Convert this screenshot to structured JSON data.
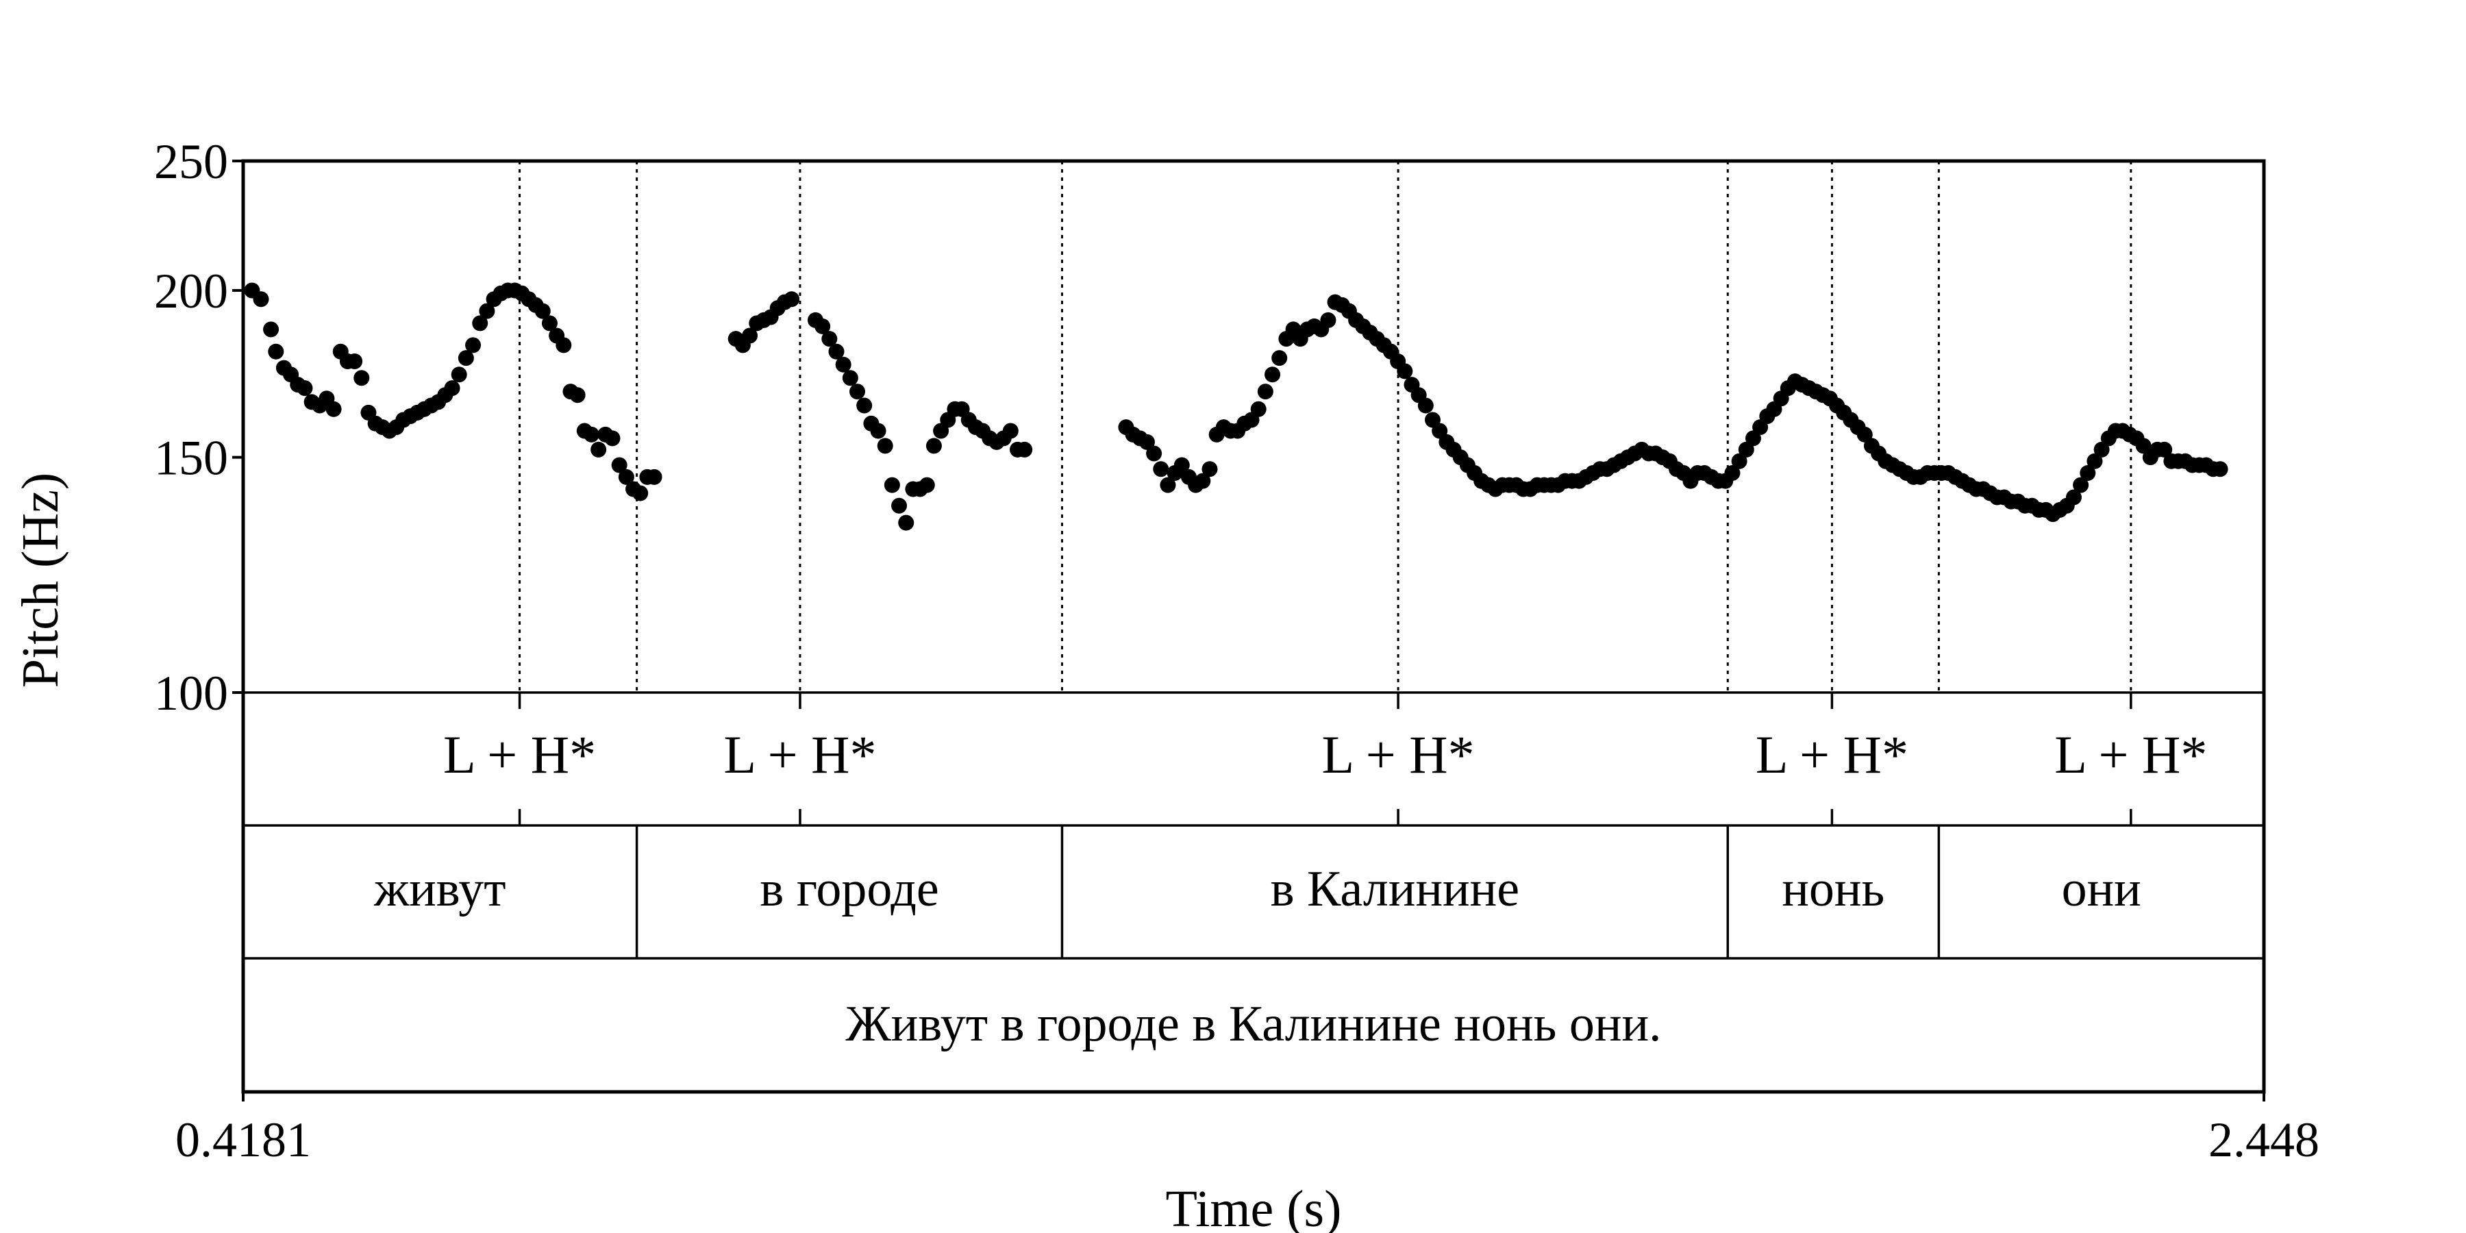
{
  "chart_data": {
    "type": "scatter",
    "xlabel": "Time (s)",
    "ylabel": "Pitch (Hz)",
    "xlim": [
      0.4181,
      2.448
    ],
    "ylim": [
      100,
      250
    ],
    "y_scale": "log",
    "x_tick_labels": [
      "0.4181",
      "2.448"
    ],
    "y_ticks": [
      {
        "value": 100,
        "label": "100"
      },
      {
        "value": 150,
        "label": "150"
      },
      {
        "value": 200,
        "label": "200"
      },
      {
        "value": 250,
        "label": "250"
      }
    ],
    "grid": false,
    "marker_color": "#000000",
    "series": [
      {
        "points": [
          [
            0.427,
            200
          ],
          [
            0.436,
            197
          ],
          [
            0.446,
            187
          ],
          [
            0.451,
            180
          ],
          [
            0.459,
            175
          ],
          [
            0.466,
            173
          ],
          [
            0.473,
            170
          ],
          [
            0.48,
            169
          ],
          [
            0.487,
            165
          ],
          [
            0.495,
            164
          ],
          [
            0.502,
            166
          ],
          [
            0.509,
            163
          ],
          [
            0.516,
            180
          ],
          [
            0.523,
            177
          ],
          [
            0.53,
            177
          ],
          [
            0.537,
            172
          ],
          [
            0.544,
            162
          ],
          [
            0.551,
            159
          ],
          [
            0.558,
            158
          ],
          [
            0.565,
            157
          ],
          [
            0.572,
            158
          ],
          [
            0.579,
            160
          ],
          [
            0.586,
            161
          ],
          [
            0.593,
            162
          ],
          [
            0.6,
            163
          ],
          [
            0.607,
            164
          ],
          [
            0.614,
            165
          ],
          [
            0.621,
            167
          ],
          [
            0.628,
            169
          ],
          [
            0.635,
            173
          ],
          [
            0.642,
            178
          ],
          [
            0.649,
            182
          ],
          [
            0.656,
            189
          ],
          [
            0.663,
            193
          ],
          [
            0.67,
            197
          ],
          [
            0.677,
            199
          ],
          [
            0.684,
            200
          ],
          [
            0.691,
            200
          ],
          [
            0.698,
            199
          ],
          [
            0.705,
            197
          ],
          [
            0.712,
            195
          ],
          [
            0.719,
            193
          ],
          [
            0.726,
            189
          ],
          [
            0.733,
            185
          ],
          [
            0.74,
            182
          ],
          [
            0.747,
            168
          ],
          [
            0.754,
            167
          ],
          [
            0.761,
            157
          ],
          [
            0.768,
            156
          ],
          [
            0.775,
            152
          ],
          [
            0.782,
            156
          ],
          [
            0.789,
            155
          ],
          [
            0.796,
            148
          ],
          [
            0.803,
            145
          ],
          [
            0.81,
            142
          ],
          [
            0.817,
            141
          ],
          [
            0.824,
            145
          ],
          [
            0.831,
            145
          ],
          [
            0.913,
            184
          ],
          [
            0.92,
            182
          ],
          [
            0.927,
            185
          ],
          [
            0.934,
            189
          ],
          [
            0.941,
            190
          ],
          [
            0.948,
            191
          ],
          [
            0.955,
            194
          ],
          [
            0.962,
            196
          ],
          [
            0.969,
            197
          ],
          [
            0.993,
            190
          ],
          [
            1.0,
            188
          ],
          [
            1.007,
            184
          ],
          [
            1.014,
            180
          ],
          [
            1.021,
            176
          ],
          [
            1.028,
            172
          ],
          [
            1.035,
            168
          ],
          [
            1.042,
            164
          ],
          [
            1.049,
            159
          ],
          [
            1.056,
            157
          ],
          [
            1.063,
            153
          ],
          [
            1.07,
            143
          ],
          [
            1.077,
            138
          ],
          [
            1.084,
            134
          ],
          [
            1.091,
            142
          ],
          [
            1.098,
            142
          ],
          [
            1.105,
            143
          ],
          [
            1.112,
            153
          ],
          [
            1.119,
            157
          ],
          [
            1.126,
            160
          ],
          [
            1.133,
            163
          ],
          [
            1.14,
            163
          ],
          [
            1.147,
            160
          ],
          [
            1.154,
            158
          ],
          [
            1.161,
            157
          ],
          [
            1.168,
            155
          ],
          [
            1.175,
            154
          ],
          [
            1.182,
            155
          ],
          [
            1.189,
            157
          ],
          [
            1.196,
            152
          ],
          [
            1.203,
            152
          ],
          [
            1.305,
            158
          ],
          [
            1.312,
            156
          ],
          [
            1.319,
            155
          ],
          [
            1.326,
            154
          ],
          [
            1.333,
            151
          ],
          [
            1.34,
            147
          ],
          [
            1.347,
            143
          ],
          [
            1.354,
            146
          ],
          [
            1.361,
            148
          ],
          [
            1.368,
            145
          ],
          [
            1.375,
            143
          ],
          [
            1.382,
            144
          ],
          [
            1.389,
            147
          ],
          [
            1.396,
            156
          ],
          [
            1.403,
            158
          ],
          [
            1.41,
            157
          ],
          [
            1.417,
            157
          ],
          [
            1.424,
            159
          ],
          [
            1.431,
            160
          ],
          [
            1.438,
            163
          ],
          [
            1.445,
            168
          ],
          [
            1.452,
            173
          ],
          [
            1.459,
            178
          ],
          [
            1.466,
            184
          ],
          [
            1.473,
            187
          ],
          [
            1.48,
            184
          ],
          [
            1.487,
            187
          ],
          [
            1.494,
            188
          ],
          [
            1.501,
            187
          ],
          [
            1.508,
            190
          ],
          [
            1.515,
            196
          ],
          [
            1.522,
            195
          ],
          [
            1.529,
            193
          ],
          [
            1.536,
            190
          ],
          [
            1.543,
            188
          ],
          [
            1.55,
            186
          ],
          [
            1.557,
            184
          ],
          [
            1.564,
            182
          ],
          [
            1.571,
            180
          ],
          [
            1.578,
            177
          ],
          [
            1.585,
            174
          ],
          [
            1.592,
            170
          ],
          [
            1.599,
            167
          ],
          [
            1.606,
            164
          ],
          [
            1.613,
            160
          ],
          [
            1.62,
            157
          ],
          [
            1.627,
            154
          ],
          [
            1.634,
            152
          ],
          [
            1.641,
            150
          ],
          [
            1.648,
            148
          ],
          [
            1.655,
            146
          ],
          [
            1.662,
            144
          ],
          [
            1.669,
            143
          ],
          [
            1.676,
            142
          ],
          [
            1.683,
            143
          ],
          [
            1.69,
            143
          ],
          [
            1.697,
            143
          ],
          [
            1.704,
            142
          ],
          [
            1.711,
            142
          ],
          [
            1.718,
            143
          ],
          [
            1.725,
            143
          ],
          [
            1.732,
            143
          ],
          [
            1.739,
            143
          ],
          [
            1.746,
            144
          ],
          [
            1.753,
            144
          ],
          [
            1.76,
            144
          ],
          [
            1.767,
            145
          ],
          [
            1.774,
            146
          ],
          [
            1.781,
            147
          ],
          [
            1.788,
            147
          ],
          [
            1.795,
            148
          ],
          [
            1.802,
            149
          ],
          [
            1.809,
            150
          ],
          [
            1.816,
            151
          ],
          [
            1.823,
            152
          ],
          [
            1.83,
            151
          ],
          [
            1.837,
            151
          ],
          [
            1.844,
            150
          ],
          [
            1.851,
            149
          ],
          [
            1.858,
            147
          ],
          [
            1.865,
            146
          ],
          [
            1.872,
            144
          ],
          [
            1.879,
            146
          ],
          [
            1.886,
            146
          ],
          [
            1.893,
            145
          ],
          [
            1.9,
            144
          ],
          [
            1.907,
            144
          ],
          [
            1.914,
            146
          ],
          [
            1.921,
            149
          ],
          [
            1.928,
            152
          ],
          [
            1.935,
            155
          ],
          [
            1.942,
            158
          ],
          [
            1.949,
            161
          ],
          [
            1.956,
            163
          ],
          [
            1.963,
            166
          ],
          [
            1.97,
            169
          ],
          [
            1.977,
            171
          ],
          [
            1.984,
            170
          ],
          [
            1.991,
            169
          ],
          [
            1.998,
            168
          ],
          [
            2.005,
            167
          ],
          [
            2.012,
            166
          ],
          [
            2.019,
            164
          ],
          [
            2.026,
            162
          ],
          [
            2.033,
            160
          ],
          [
            2.04,
            158
          ],
          [
            2.047,
            156
          ],
          [
            2.054,
            153
          ],
          [
            2.061,
            151
          ],
          [
            2.068,
            149
          ],
          [
            2.075,
            148
          ],
          [
            2.082,
            147
          ],
          [
            2.089,
            146
          ],
          [
            2.096,
            145
          ],
          [
            2.103,
            145
          ],
          [
            2.11,
            146
          ],
          [
            2.117,
            146
          ],
          [
            2.124,
            146
          ],
          [
            2.131,
            146
          ],
          [
            2.138,
            145
          ],
          [
            2.145,
            144
          ],
          [
            2.152,
            143
          ],
          [
            2.159,
            142
          ],
          [
            2.166,
            142
          ],
          [
            2.173,
            141
          ],
          [
            2.18,
            140
          ],
          [
            2.187,
            140
          ],
          [
            2.194,
            139
          ],
          [
            2.201,
            139
          ],
          [
            2.208,
            138
          ],
          [
            2.215,
            138
          ],
          [
            2.222,
            137
          ],
          [
            2.229,
            137
          ],
          [
            2.236,
            136
          ],
          [
            2.243,
            137
          ],
          [
            2.25,
            138
          ],
          [
            2.257,
            140
          ],
          [
            2.264,
            143
          ],
          [
            2.271,
            146
          ],
          [
            2.278,
            149
          ],
          [
            2.285,
            152
          ],
          [
            2.292,
            155
          ],
          [
            2.299,
            157
          ],
          [
            2.306,
            157
          ],
          [
            2.313,
            156
          ],
          [
            2.32,
            155
          ],
          [
            2.327,
            153
          ],
          [
            2.334,
            150
          ],
          [
            2.341,
            152
          ],
          [
            2.348,
            152
          ],
          [
            2.355,
            149
          ],
          [
            2.362,
            149
          ],
          [
            2.369,
            149
          ],
          [
            2.376,
            148
          ],
          [
            2.383,
            148
          ],
          [
            2.39,
            148
          ],
          [
            2.397,
            147
          ],
          [
            2.404,
            147
          ]
        ]
      }
    ],
    "boundaries": [
      0.8135,
      1.2407,
      1.9094,
      2.1214
    ],
    "tiers": [
      {
        "name": "tones",
        "labels": [
          {
            "t": 0.6958,
            "text": "L + H*"
          },
          {
            "t": 0.9775,
            "text": "L + H*"
          },
          {
            "t": 1.5783,
            "text": "L + H*"
          },
          {
            "t": 2.0141,
            "text": "L + H*"
          },
          {
            "t": 2.3144,
            "text": "L + H*"
          }
        ]
      },
      {
        "name": "words",
        "intervals": [
          {
            "start": 0.4181,
            "end": 0.8135,
            "text": "живут"
          },
          {
            "start": 0.8135,
            "end": 1.2407,
            "text": "в городе"
          },
          {
            "start": 1.2407,
            "end": 1.9094,
            "text": "в Калинине"
          },
          {
            "start": 1.9094,
            "end": 2.1214,
            "text": "нонь"
          },
          {
            "start": 2.1214,
            "end": 2.448,
            "text": "они"
          }
        ]
      },
      {
        "name": "sentence",
        "intervals": [
          {
            "start": 0.4181,
            "end": 2.448,
            "text": "Живут в городе в Калинине нонь они."
          }
        ]
      }
    ]
  }
}
